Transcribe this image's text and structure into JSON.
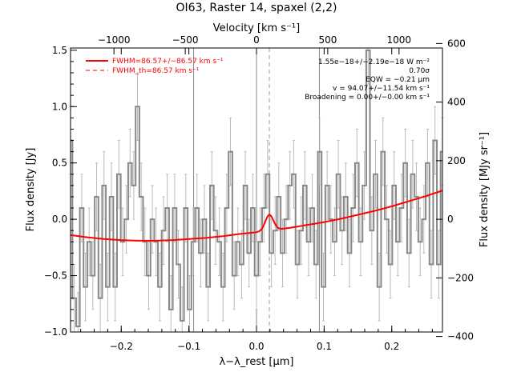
{
  "chart_data": {
    "type": "line",
    "title": "OI63, Raster 14, spaxel (2,2)",
    "xlabel": "λ−λ_rest [μm]",
    "ylabel": "Flux density [Jy]",
    "top_axis_label": "Velocity [km s⁻¹]",
    "right_axis_label": "Flux density [MJy sr⁻¹]",
    "xlim": [
      -0.275,
      0.275
    ],
    "ylim": [
      -1.0,
      1.52
    ],
    "x_ticks": [
      -0.2,
      -0.1,
      0.0,
      0.1,
      0.2
    ],
    "x_tick_labels": [
      "−0.2",
      "−0.1",
      "0.0",
      "0.1",
      "0.2"
    ],
    "y_ticks": [
      -1.0,
      -0.5,
      0.0,
      0.5,
      1.0,
      1.5
    ],
    "y_tick_labels": [
      "−1.0",
      "−0.5",
      "0.0",
      "0.5",
      "1.0",
      "1.5"
    ],
    "top_ticks": [
      -1000,
      -500,
      0,
      500,
      1000
    ],
    "top_tick_labels": [
      "−1000",
      "−500",
      "0",
      "500",
      "1000"
    ],
    "right_ticks": [
      -400,
      -200,
      0,
      200,
      400,
      600
    ],
    "right_tick_labels": [
      "−400",
      "−200",
      "0",
      "200",
      "400",
      "600"
    ],
    "vlines_solid": [
      -0.093,
      0.0,
      0.093
    ],
    "vline_dashed": 0.019,
    "legend": {
      "position": "top-left",
      "entries": [
        "FWHM=86.57+/−86.57 km s⁻¹",
        "FWHM_th=86.57 km s⁻¹"
      ]
    },
    "annotations": [
      "1.55e−18+/−2.19e−18 W m⁻²",
      "0.70σ",
      "EQW = −0.21 μm",
      "v = 94.07+/−11.54 km s⁻¹",
      "Broadening = 0.00+/−0.00 km s⁻¹"
    ],
    "series": [
      {
        "style": "step-with-errorbars",
        "color": "#888888",
        "x": [
          -0.275,
          -0.2695,
          -0.264,
          -0.2585,
          -0.253,
          -0.2475,
          -0.242,
          -0.2365,
          -0.231,
          -0.2255,
          -0.22,
          -0.2145,
          -0.209,
          -0.2035,
          -0.198,
          -0.1925,
          -0.187,
          -0.1815,
          -0.176,
          -0.1705,
          -0.165,
          -0.1595,
          -0.154,
          -0.1485,
          -0.143,
          -0.1375,
          -0.132,
          -0.1265,
          -0.121,
          -0.1155,
          -0.11,
          -0.1045,
          -0.099,
          -0.0935,
          -0.088,
          -0.0825,
          -0.077,
          -0.0715,
          -0.066,
          -0.0605,
          -0.055,
          -0.0495,
          -0.044,
          -0.0385,
          -0.033,
          -0.0275,
          -0.022,
          -0.0165,
          -0.011,
          -0.0055,
          0.0,
          0.0055,
          0.011,
          0.0165,
          0.022,
          0.0275,
          0.033,
          0.0385,
          0.044,
          0.0495,
          0.055,
          0.0605,
          0.066,
          0.0715,
          0.077,
          0.0825,
          0.088,
          0.0935,
          0.099,
          0.1045,
          0.11,
          0.1155,
          0.121,
          0.1265,
          0.132,
          0.1375,
          0.143,
          0.1485,
          0.154,
          0.1595,
          0.165,
          0.1705,
          0.176,
          0.1815,
          0.187,
          0.1925,
          0.198,
          0.2035,
          0.209,
          0.2145,
          0.22,
          0.2255,
          0.231,
          0.2365,
          0.242,
          0.2475,
          0.253,
          0.2585,
          0.264,
          0.2695,
          0.275
        ],
        "y": [
          0.7,
          -0.7,
          -0.95,
          0.1,
          -0.6,
          -0.2,
          -0.5,
          0.2,
          -0.7,
          0.3,
          -0.6,
          0.2,
          -0.6,
          0.4,
          -0.2,
          0.0,
          0.5,
          0.3,
          1.0,
          0.2,
          -0.2,
          -0.5,
          0.0,
          -0.2,
          -0.6,
          -0.1,
          0.1,
          -0.8,
          0.1,
          -0.4,
          -0.9,
          0.1,
          -0.8,
          -0.2,
          0.1,
          -0.3,
          0.0,
          -0.6,
          0.3,
          -0.1,
          -0.2,
          -0.6,
          0.1,
          0.6,
          -0.5,
          -0.2,
          -0.4,
          0.3,
          -0.3,
          0.1,
          -0.5,
          -0.2,
          0.1,
          0.4,
          -0.3,
          -0.1,
          0.2,
          -0.3,
          0.0,
          0.3,
          0.4,
          -0.4,
          -0.1,
          0.3,
          -0.2,
          0.1,
          -0.4,
          0.6,
          -0.6,
          0.3,
          0.0,
          -0.2,
          0.4,
          -0.1,
          0.2,
          -0.3,
          0.1,
          0.5,
          -0.2,
          0.3,
          1.5,
          -0.1,
          0.4,
          -0.6,
          0.6,
          0.0,
          -0.4,
          0.3,
          -0.2,
          0.1,
          0.5,
          -0.3,
          0.4,
          0.2,
          -0.2,
          0.0,
          0.5,
          -0.4,
          0.7,
          -0.4,
          0.6
        ],
        "yerr": 0.3
      },
      {
        "style": "line",
        "color": "#ff0000",
        "x": [
          -0.275,
          -0.25,
          -0.225,
          -0.2,
          -0.175,
          -0.15,
          -0.125,
          -0.1,
          -0.075,
          -0.05,
          -0.025,
          0.0,
          0.025,
          0.05,
          0.075,
          0.1,
          0.125,
          0.15,
          0.175,
          0.2,
          0.225,
          0.25,
          0.275
        ],
        "y": [
          -0.14,
          -0.16,
          -0.175,
          -0.185,
          -0.19,
          -0.19,
          -0.185,
          -0.175,
          -0.165,
          -0.15,
          -0.13,
          -0.115,
          -0.095,
          -0.075,
          -0.05,
          -0.025,
          0.005,
          0.04,
          0.075,
          0.115,
          0.16,
          0.205,
          0.255
        ]
      }
    ],
    "gaussian": {
      "center": 0.019,
      "amplitude": 0.14,
      "sigma": 0.006
    }
  }
}
